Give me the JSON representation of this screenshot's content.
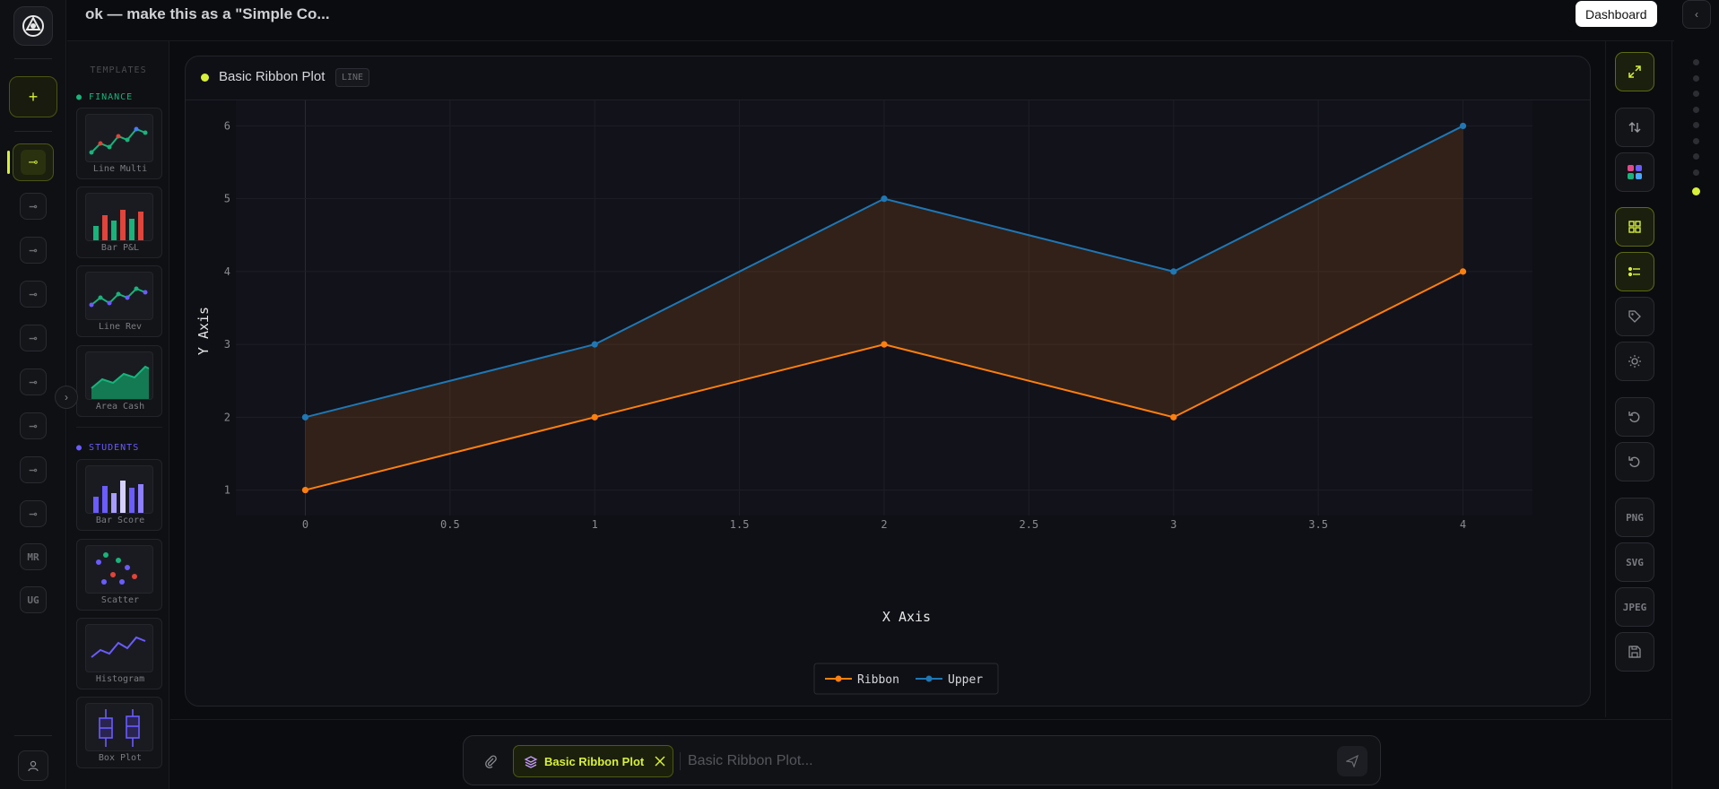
{
  "header": {
    "title": "ok — make this as a \"Simple Co...",
    "dashboard_button": "Dashboard",
    "collapse_icon": "chevron-left-icon"
  },
  "rail": {
    "new_label": "+",
    "items": [
      "MR",
      "UG"
    ]
  },
  "templates": {
    "heading": "TEMPLATES",
    "groups": [
      {
        "name": "FINANCE",
        "color": "#19b37b",
        "items": [
          "Line Multi",
          "Bar P&L",
          "Line Rev",
          "Area Cash"
        ]
      },
      {
        "name": "STUDENTS",
        "color": "#6a5cff",
        "items": [
          "Bar Score",
          "Scatter",
          "Histogram",
          "Box Plot"
        ]
      }
    ]
  },
  "card": {
    "title": "Basic Ribbon Plot",
    "badge": "LINE",
    "status_color": "#d8f03a"
  },
  "chart_data": {
    "type": "line",
    "title": "",
    "xlabel": "X Axis",
    "ylabel": "Y Axis",
    "xlim": [
      -0.24,
      4.24
    ],
    "ylim": [
      0.65,
      6.35
    ],
    "x_ticks": [
      "0",
      "0.5",
      "1",
      "1.5",
      "2",
      "2.5",
      "3",
      "3.5",
      "4"
    ],
    "y_ticks": [
      "1",
      "2",
      "3",
      "4",
      "5",
      "6"
    ],
    "grid": true,
    "legend_position": "bottom-center",
    "fill_between": true,
    "series": [
      {
        "name": "Ribbon",
        "color": "#ff7f0e",
        "x": [
          0,
          1,
          2,
          3,
          4
        ],
        "y": [
          1,
          2,
          3,
          2,
          4
        ]
      },
      {
        "name": "Upper",
        "color": "#1f77b4",
        "x": [
          0,
          1,
          2,
          3,
          4
        ],
        "y": [
          2,
          3,
          5,
          4,
          6
        ]
      }
    ]
  },
  "toolbar": {
    "png": "PNG",
    "svg": "SVG",
    "jpeg": "JPEG"
  },
  "input": {
    "chip_label": "Basic Ribbon Plot",
    "placeholder": "Basic Ribbon Plot..."
  },
  "colors": {
    "accent": "#d8f03a",
    "background": "#0b0c10"
  }
}
